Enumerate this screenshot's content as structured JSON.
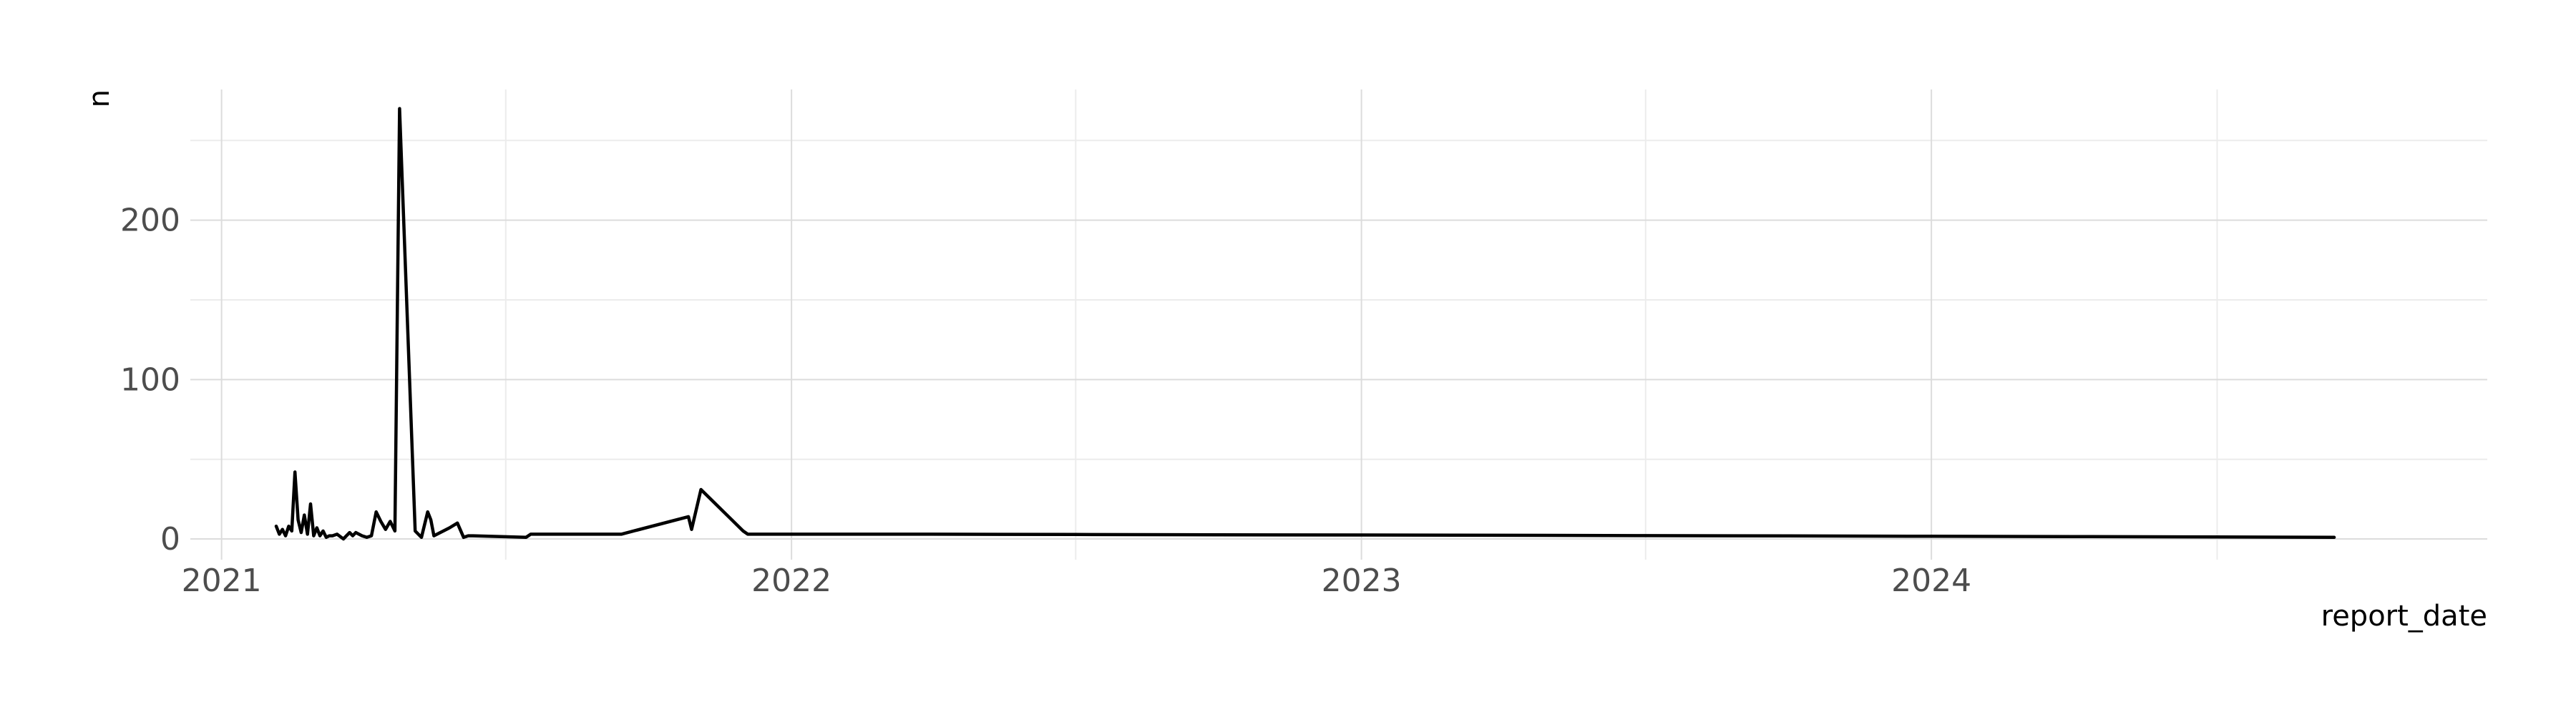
{
  "chart_data": {
    "type": "line",
    "xlabel": "report_date",
    "ylabel": "n",
    "x_ticks": [
      "2021",
      "2022",
      "2023",
      "2024"
    ],
    "y_ticks": [
      0,
      100,
      200
    ],
    "xlim": [
      "2020-12-12",
      "2024-12-22"
    ],
    "ylim": [
      -13,
      282
    ],
    "grid": true,
    "series": [
      {
        "x": [
          "2021-02-05",
          "2021-02-07",
          "2021-02-09",
          "2021-02-11",
          "2021-02-13",
          "2021-02-15",
          "2021-02-17",
          "2021-02-19",
          "2021-02-21",
          "2021-02-23",
          "2021-02-25",
          "2021-02-27",
          "2021-03-01",
          "2021-03-03",
          "2021-03-05",
          "2021-03-07",
          "2021-03-09",
          "2021-03-11",
          "2021-03-13",
          "2021-03-16",
          "2021-03-20",
          "2021-03-24",
          "2021-03-26",
          "2021-03-28",
          "2021-04-01",
          "2021-04-04",
          "2021-04-07",
          "2021-04-10",
          "2021-04-13",
          "2021-04-16",
          "2021-04-19",
          "2021-04-22",
          "2021-04-25",
          "2021-05-05",
          "2021-05-09",
          "2021-05-13",
          "2021-05-15",
          "2021-05-17",
          "2021-05-27",
          "2021-06-01",
          "2021-06-05",
          "2021-06-08",
          "2021-06-11",
          "2021-07-15",
          "2021-07-18",
          "2021-09-10",
          "2021-09-12",
          "2021-09-14",
          "2021-10-27",
          "2021-10-29",
          "2021-11-04",
          "2021-12-01",
          "2021-12-04",
          "2021-12-07",
          "2022-01-10",
          "2022-04-01",
          "2022-07-01",
          "2022-10-01",
          "2023-01-01",
          "2023-04-01",
          "2023-07-01",
          "2023-10-01",
          "2024-01-01",
          "2024-04-01",
          "2024-07-01",
          "2024-09-15"
        ],
        "y": [
          8,
          3,
          6,
          2,
          8,
          5,
          42,
          12,
          4,
          15,
          3,
          22,
          2,
          7,
          2,
          5,
          1,
          2,
          2,
          3,
          0,
          4,
          2,
          4,
          2,
          1,
          2,
          17,
          11,
          6,
          11,
          5,
          270,
          5,
          1,
          17,
          12,
          2,
          7,
          10,
          1,
          2,
          2,
          1,
          3,
          3,
          3,
          3,
          14,
          6,
          31,
          5,
          3,
          3,
          3,
          3,
          2.8,
          2.6,
          2.5,
          2.3,
          2.1,
          1.9,
          1.7,
          1.5,
          1.3,
          1
        ]
      }
    ]
  }
}
